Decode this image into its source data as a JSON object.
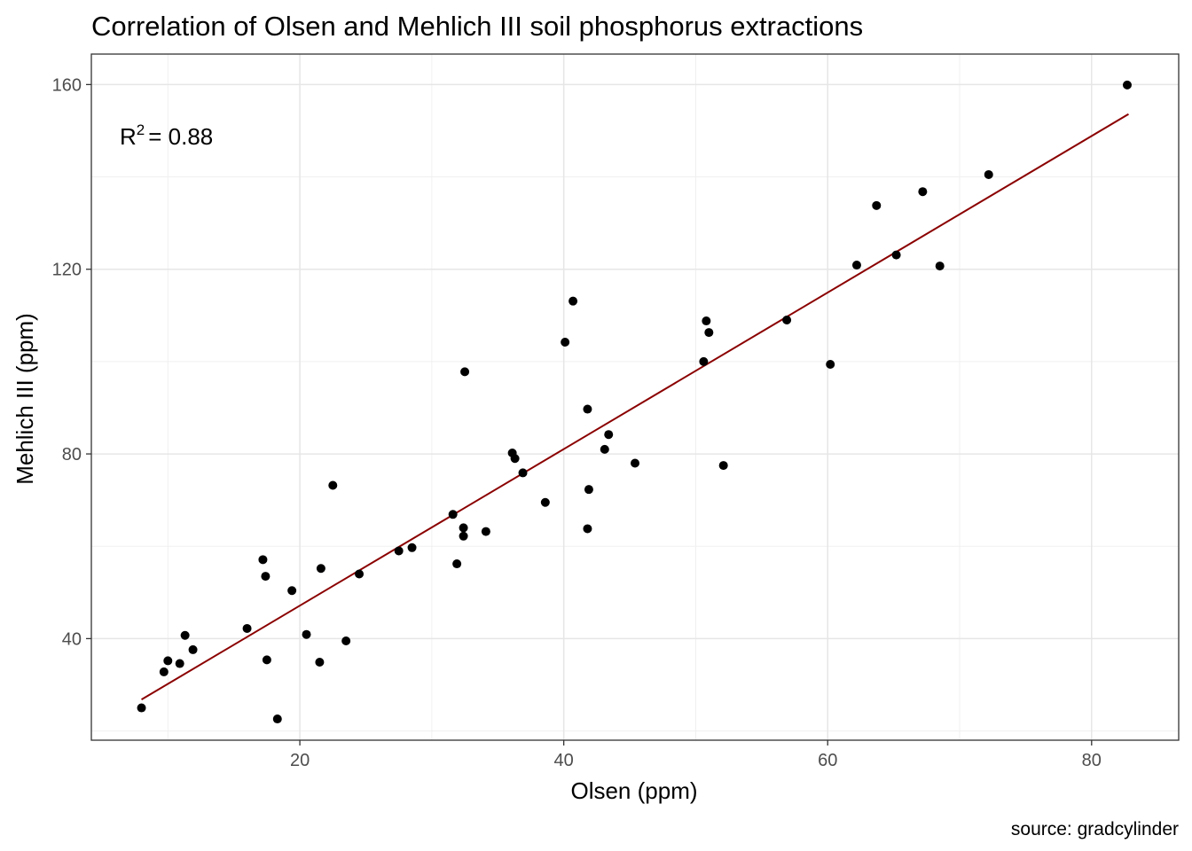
{
  "chart_data": {
    "type": "scatter",
    "title": "Correlation of Olsen and Mehlich III soil phosphorus extractions",
    "xlabel": "Olsen (ppm)",
    "ylabel": "Mehlich III (ppm)",
    "caption": "source: gradcylinder",
    "annotation": {
      "base": "R",
      "sup": "2",
      "rest": "= 0.88"
    },
    "xlim": [
      4.2,
      86.6
    ],
    "ylim": [
      18.0,
      166.6
    ],
    "xticks": [
      20,
      40,
      60,
      80
    ],
    "yticks": [
      40,
      80,
      120,
      160
    ],
    "xminor": [
      10,
      30,
      50,
      70
    ],
    "yminor": [
      20,
      60,
      100,
      140
    ],
    "grid": true,
    "point_color": "#000000",
    "line_color": "#8b0000",
    "fit": {
      "x": [
        8.0,
        82.8
      ],
      "y": [
        26.8,
        153.6
      ]
    },
    "series": [
      {
        "x": [
          8.0,
          9.7,
          10.0,
          10.9,
          11.3,
          11.9,
          16.0,
          17.2,
          17.4,
          17.5,
          18.3,
          19.4,
          20.5,
          21.5,
          21.6,
          22.5,
          23.5,
          24.5,
          27.5,
          28.5,
          31.6,
          31.9,
          32.4,
          32.4,
          32.5,
          34.1,
          36.1,
          36.3,
          36.9,
          38.6,
          40.1,
          40.7,
          41.8,
          41.8,
          41.9,
          43.1,
          43.4,
          45.4,
          50.6,
          50.8,
          51.0,
          52.1,
          56.9,
          60.2,
          62.2,
          63.7,
          65.2,
          67.2,
          68.5,
          72.2,
          82.7
        ],
        "y": [
          25.0,
          32.8,
          35.2,
          34.6,
          40.7,
          37.6,
          42.2,
          57.1,
          53.5,
          35.4,
          22.6,
          50.4,
          40.9,
          34.9,
          55.2,
          73.2,
          39.5,
          54.0,
          59.0,
          59.7,
          66.9,
          56.2,
          62.2,
          64.0,
          97.8,
          63.2,
          80.2,
          79.0,
          75.9,
          69.5,
          104.2,
          113.1,
          63.8,
          89.7,
          72.3,
          81.0,
          84.2,
          78.0,
          100.0,
          108.8,
          106.3,
          77.5,
          109.0,
          99.4,
          120.9,
          133.8,
          123.1,
          136.8,
          120.7,
          140.5,
          159.9
        ]
      }
    ]
  }
}
